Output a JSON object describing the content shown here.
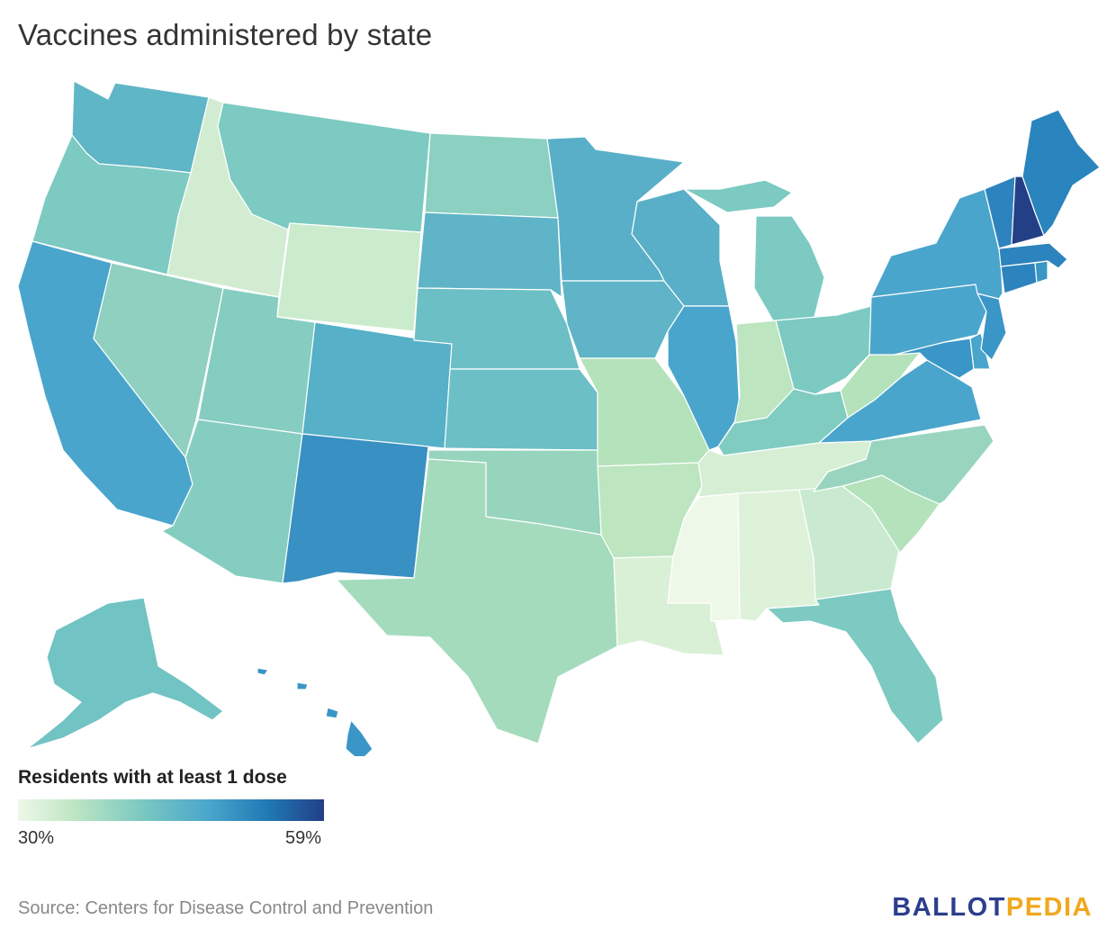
{
  "title": "Vaccines administered by state",
  "legend": {
    "title": "Residents with at least 1 dose",
    "min_label": "30%",
    "max_label": "59%",
    "min_value": 30,
    "max_value": 59,
    "colors": [
      "#eef8e8",
      "#bfe6c4",
      "#7cc9c1",
      "#4aa7cb",
      "#1f78b4",
      "#233f86"
    ]
  },
  "source": "Source: Centers for Disease Control and Prevention",
  "logo": {
    "part1": "BALLOT",
    "part2": "PEDIA",
    "color1": "#2c3e8c",
    "color2": "#f0a81e"
  },
  "states": [
    {
      "id": "WA",
      "color": "#5fb6c6"
    },
    {
      "id": "OR",
      "color": "#7ccac2"
    },
    {
      "id": "CA",
      "color": "#4aa5cc"
    },
    {
      "id": "ID",
      "color": "#d2ecd2"
    },
    {
      "id": "NV",
      "color": "#8fd0c0"
    },
    {
      "id": "MT",
      "color": "#7ccac2"
    },
    {
      "id": "WY",
      "color": "#cbebcd"
    },
    {
      "id": "UT",
      "color": "#86cdc1"
    },
    {
      "id": "AZ",
      "color": "#86cdc1"
    },
    {
      "id": "CO",
      "color": "#55b0c8"
    },
    {
      "id": "NM",
      "color": "#3990c2"
    },
    {
      "id": "ND",
      "color": "#8bd0c0"
    },
    {
      "id": "SD",
      "color": "#5fb4c7"
    },
    {
      "id": "NE",
      "color": "#6cbfc5"
    },
    {
      "id": "KS",
      "color": "#6cbfc5"
    },
    {
      "id": "OK",
      "color": "#96d4bd"
    },
    {
      "id": "TX",
      "color": "#a5dbbd"
    },
    {
      "id": "MN",
      "color": "#5aafc8"
    },
    {
      "id": "IA",
      "color": "#5fb4c7"
    },
    {
      "id": "MO",
      "color": "#b4e2ba"
    },
    {
      "id": "AR",
      "color": "#bce5c0"
    },
    {
      "id": "LA",
      "color": "#d9f0d6"
    },
    {
      "id": "WI",
      "color": "#5aafc8"
    },
    {
      "id": "IL",
      "color": "#4aa5cc"
    },
    {
      "id": "MI",
      "color": "#7ccac2"
    },
    {
      "id": "IN",
      "color": "#bce5c0"
    },
    {
      "id": "OH",
      "color": "#7ccac2"
    },
    {
      "id": "KY",
      "color": "#80ccc1"
    },
    {
      "id": "TN",
      "color": "#d5eed4"
    },
    {
      "id": "MS",
      "color": "#eef8e8"
    },
    {
      "id": "AL",
      "color": "#def2da"
    },
    {
      "id": "GA",
      "color": "#c9ead0"
    },
    {
      "id": "FL",
      "color": "#7ccac2"
    },
    {
      "id": "SC",
      "color": "#b4e2ba"
    },
    {
      "id": "NC",
      "color": "#99d5be"
    },
    {
      "id": "VA",
      "color": "#4aa5cc"
    },
    {
      "id": "WV",
      "color": "#b4e2ba"
    },
    {
      "id": "PA",
      "color": "#4aa5cc"
    },
    {
      "id": "NY",
      "color": "#4aa5cc"
    },
    {
      "id": "NJ",
      "color": "#3a96c6"
    },
    {
      "id": "MD",
      "color": "#3a96c6"
    },
    {
      "id": "DE",
      "color": "#4aa5cc"
    },
    {
      "id": "CT",
      "color": "#2d83bd"
    },
    {
      "id": "MA",
      "color": "#2d83bd"
    },
    {
      "id": "VT",
      "color": "#2d83bd"
    },
    {
      "id": "NH",
      "color": "#233f86"
    },
    {
      "id": "ME",
      "color": "#2a84bd"
    },
    {
      "id": "RI",
      "color": "#3a96c6"
    },
    {
      "id": "AK",
      "color": "#72c3c3"
    },
    {
      "id": "HI",
      "color": "#3a96c6"
    }
  ]
}
